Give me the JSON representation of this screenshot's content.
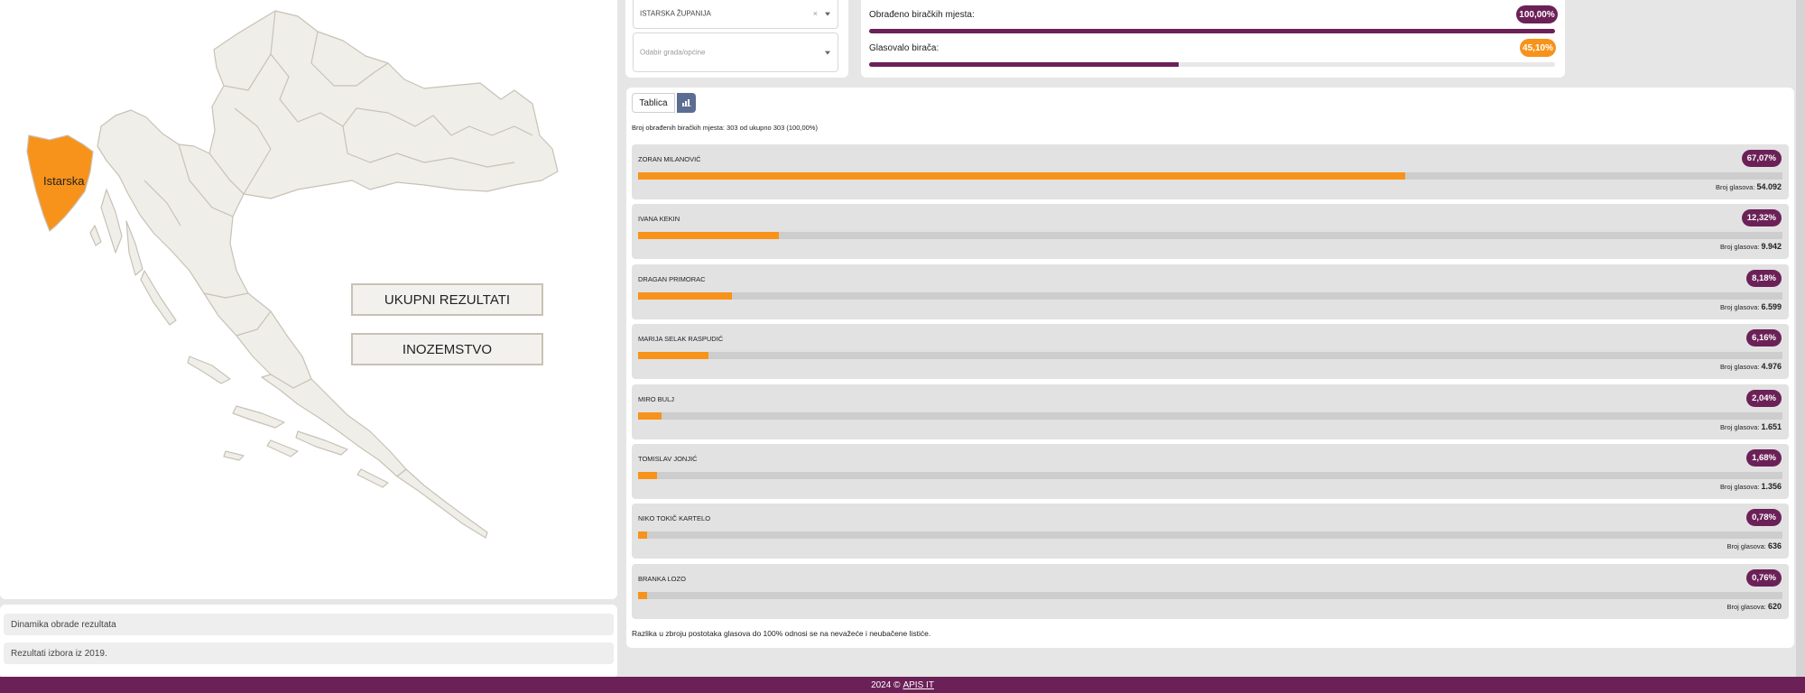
{
  "map": {
    "selected_region_label": "Istarska",
    "buttons": {
      "total_results": "UKUPNI REZULTATI",
      "abroad": "INOZEMSTVO"
    },
    "colors": {
      "selected": "#f7931a",
      "land": "#f0eee9",
      "border": "#c7c2b5"
    }
  },
  "sidebar_links": [
    "Dinamika obrade rezultata",
    "Rezultati izbora iz 2019."
  ],
  "filters": {
    "county_value": "ISTARSKA ŽUPANIJA",
    "city_placeholder": "Odabir grada/općine"
  },
  "stats": {
    "processed_label": "Obrađeno biračkih mjesta:",
    "processed_value": "100,00%",
    "processed_fraction": 1.0,
    "turnout_label": "Glasovalo birača:",
    "turnout_value": "45,10%",
    "turnout_fraction": 0.451
  },
  "tabs": {
    "table": "Tablica",
    "chart_icon": "bar-chart-icon"
  },
  "processed_text": "Broj obrađenih biračkih mjesta: 303 od ukupno 303 (100,00%)",
  "votes_label": "Broj glasova:",
  "candidates": [
    {
      "name": "ZORAN MILANOVIĆ",
      "percent": "67,07%",
      "votes": "54.092",
      "fraction": 0.6707
    },
    {
      "name": "IVANA KEKIN",
      "percent": "12,32%",
      "votes": "9.942",
      "fraction": 0.1232
    },
    {
      "name": "DRAGAN PRIMORAC",
      "percent": "8,18%",
      "votes": "6.599",
      "fraction": 0.0818
    },
    {
      "name": "MARIJA SELAK RASPUDIĆ",
      "percent": "6,16%",
      "votes": "4.976",
      "fraction": 0.0616
    },
    {
      "name": "MIRO BULJ",
      "percent": "2,04%",
      "votes": "1.651",
      "fraction": 0.0204
    },
    {
      "name": "TOMISLAV JONJIĆ",
      "percent": "1,68%",
      "votes": "1.356",
      "fraction": 0.0168
    },
    {
      "name": "NIKO TOKIČ KARTELO",
      "percent": "0,78%",
      "votes": "636",
      "fraction": 0.0078
    },
    {
      "name": "BRANKA LOZO",
      "percent": "0,76%",
      "votes": "620",
      "fraction": 0.0076
    }
  ],
  "note": "Razlika u zbroju postotaka glasova do 100% odnosi se na nevažeće i neubačene listiće.",
  "footer": {
    "text": "2024 ©",
    "link": "APIS IT"
  },
  "colors": {
    "accent_purple": "#6b2157",
    "accent_orange": "#f7931a",
    "chart_tab": "#5b6e92"
  }
}
